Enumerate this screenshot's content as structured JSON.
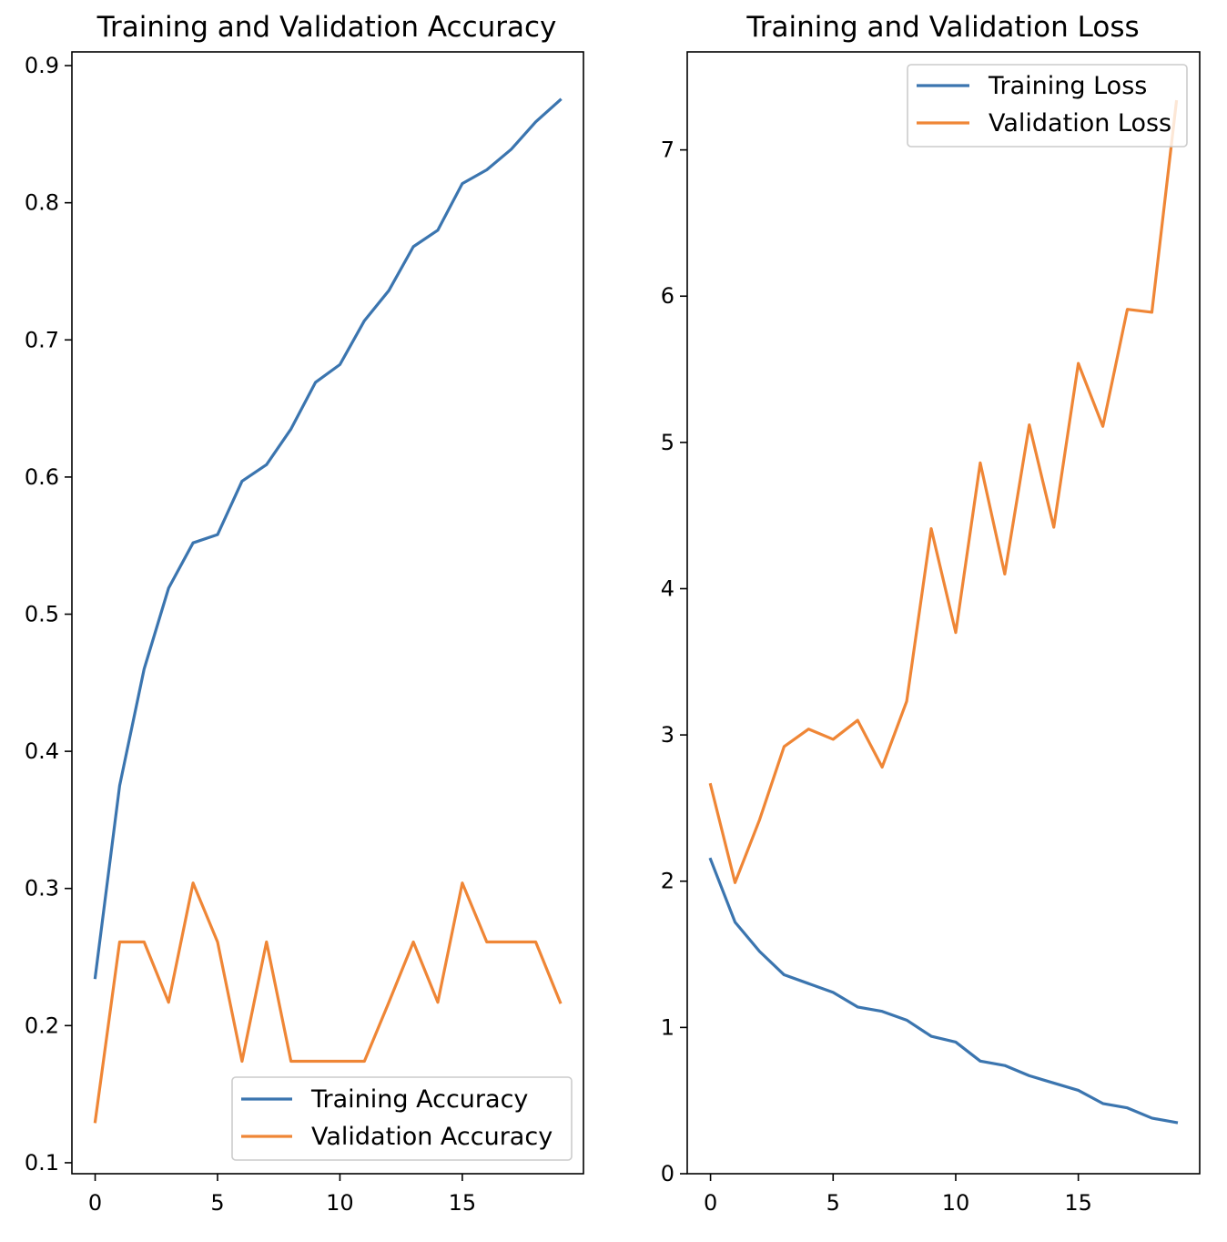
{
  "colors": {
    "training": "#3b75af",
    "validation": "#ef8636"
  },
  "chart_data": [
    {
      "type": "line",
      "title": "Training and Validation Accuracy",
      "xlabel": "",
      "ylabel": "",
      "x": [
        0,
        1,
        2,
        3,
        4,
        5,
        6,
        7,
        8,
        9,
        10,
        11,
        12,
        13,
        14,
        15,
        16,
        17,
        18,
        19
      ],
      "xlim": [
        -0.95,
        19.95
      ],
      "ylim": [
        0.092,
        0.91
      ],
      "xticks": [
        0,
        5,
        10,
        15
      ],
      "xtick_labels": [
        "0",
        "5",
        "10",
        "15"
      ],
      "yticks": [
        0.1,
        0.2,
        0.3,
        0.4,
        0.5,
        0.6,
        0.7,
        0.8,
        0.9
      ],
      "ytick_labels": [
        "0.1",
        "0.2",
        "0.3",
        "0.4",
        "0.5",
        "0.6",
        "0.7",
        "0.8",
        "0.9"
      ],
      "grid": false,
      "legend_position": "lower-right",
      "series": [
        {
          "name": "Training Accuracy",
          "color": "#3b75af",
          "values": [
            0.235,
            0.375,
            0.46,
            0.519,
            0.552,
            0.558,
            0.597,
            0.609,
            0.635,
            0.669,
            0.682,
            0.714,
            0.736,
            0.768,
            0.78,
            0.814,
            0.824,
            0.839,
            0.859,
            0.875
          ]
        },
        {
          "name": "Validation Accuracy",
          "color": "#ef8636",
          "values": [
            0.13,
            0.261,
            0.261,
            0.217,
            0.304,
            0.261,
            0.174,
            0.261,
            0.174,
            0.174,
            0.174,
            0.174,
            0.217,
            0.261,
            0.217,
            0.304,
            0.261,
            0.261,
            0.261,
            0.217
          ]
        }
      ]
    },
    {
      "type": "line",
      "title": "Training and Validation Loss",
      "xlabel": "",
      "ylabel": "",
      "x": [
        0,
        1,
        2,
        3,
        4,
        5,
        6,
        7,
        8,
        9,
        10,
        11,
        12,
        13,
        14,
        15,
        16,
        17,
        18,
        19
      ],
      "xlim": [
        -0.95,
        19.95
      ],
      "ylim": [
        0,
        7.67
      ],
      "xticks": [
        0,
        5,
        10,
        15
      ],
      "xtick_labels": [
        "0",
        "5",
        "10",
        "15"
      ],
      "yticks": [
        0,
        1,
        2,
        3,
        4,
        5,
        6,
        7
      ],
      "ytick_labels": [
        "0",
        "1",
        "2",
        "3",
        "4",
        "5",
        "6",
        "7"
      ],
      "grid": false,
      "legend_position": "top-right",
      "series": [
        {
          "name": "Training Loss",
          "color": "#3b75af",
          "values": [
            2.15,
            1.72,
            1.52,
            1.36,
            1.3,
            1.24,
            1.14,
            1.11,
            1.05,
            0.94,
            0.9,
            0.77,
            0.74,
            0.67,
            0.62,
            0.57,
            0.48,
            0.45,
            0.38,
            0.35
          ]
        },
        {
          "name": "Validation Loss",
          "color": "#ef8636",
          "values": [
            2.66,
            1.99,
            2.42,
            2.92,
            3.04,
            2.97,
            3.1,
            2.78,
            3.23,
            4.41,
            3.7,
            4.86,
            4.1,
            5.12,
            4.42,
            5.54,
            5.11,
            5.91,
            5.89,
            7.33
          ]
        }
      ]
    }
  ]
}
